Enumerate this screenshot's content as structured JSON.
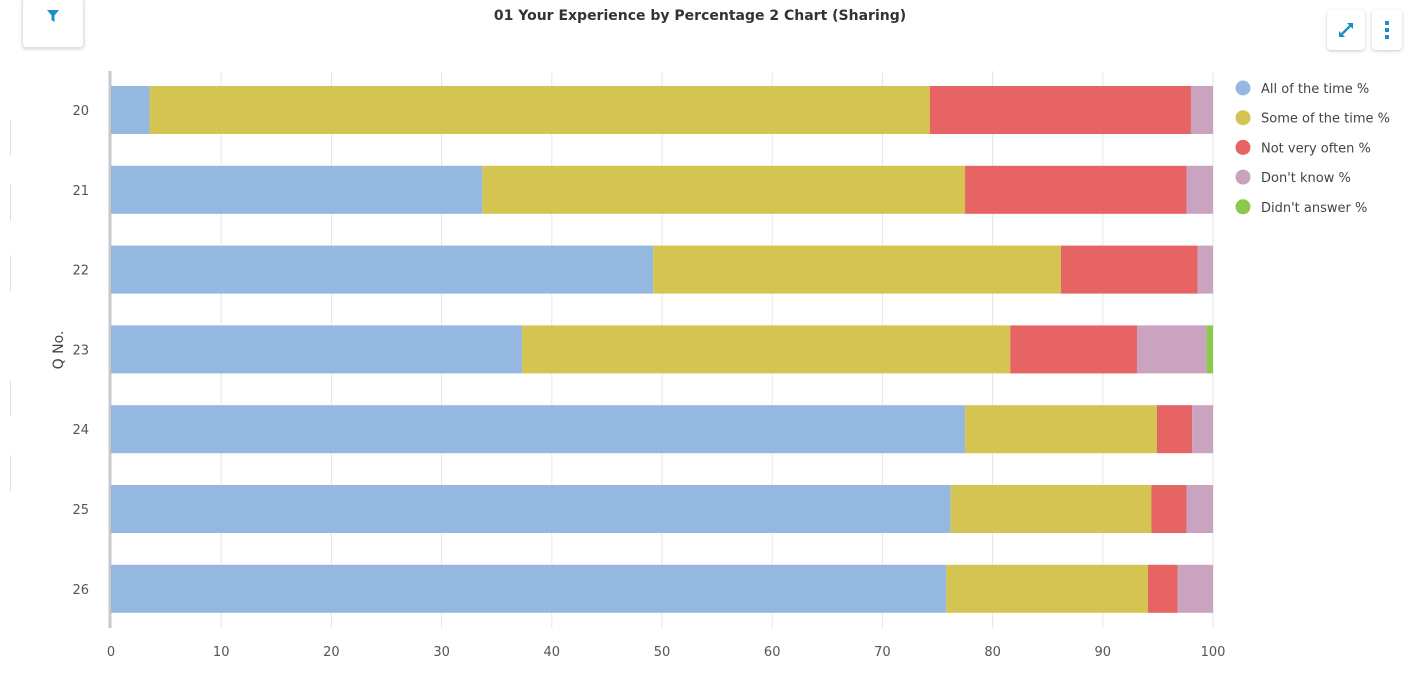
{
  "title": "01 Your Experience by Percentage 2 Chart (Sharing)",
  "toolbar": {
    "filter_icon": "filter-icon",
    "expand_icon": "expand-icon",
    "menu_icon": "kebab-menu-icon",
    "accent_color": "#1a8fc7"
  },
  "chart_data": {
    "type": "bar",
    "orientation": "horizontal",
    "stacked": true,
    "ylabel": "Q No.",
    "xlabel": "",
    "categories": [
      "20",
      "21",
      "22",
      "23",
      "24",
      "25",
      "26"
    ],
    "xlim": [
      0,
      100
    ],
    "xticks": [
      0,
      10,
      20,
      30,
      40,
      50,
      60,
      70,
      80,
      90,
      100
    ],
    "grid": "vertical",
    "legend_position": "top-right",
    "series": [
      {
        "name": "All of the time %",
        "color": "#95b8e0",
        "values": [
          3.5,
          33.7,
          49.2,
          37.3,
          77.5,
          76.2,
          75.8
        ]
      },
      {
        "name": "Some of the time %",
        "color": "#d4c452",
        "values": [
          70.8,
          43.8,
          37.0,
          44.3,
          17.4,
          18.2,
          18.3
        ]
      },
      {
        "name": "Not very often %",
        "color": "#e66464",
        "values": [
          23.7,
          20.1,
          12.4,
          11.5,
          3.2,
          3.2,
          2.7
        ]
      },
      {
        "name": "Don't know %",
        "color": "#c9a3bf",
        "values": [
          2.0,
          2.4,
          1.4,
          6.3,
          1.9,
          2.4,
          3.2
        ]
      },
      {
        "name": "Didn't answer %",
        "color": "#8cc84b",
        "values": [
          0,
          0,
          0,
          0.6,
          0,
          0,
          0
        ]
      }
    ]
  }
}
